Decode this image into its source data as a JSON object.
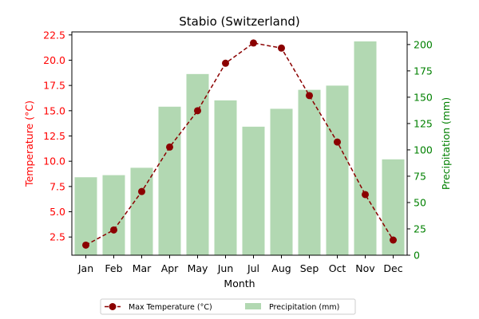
{
  "chart_data": {
    "type": "bar",
    "title": "Stabio (Switzerland)",
    "xlabel": "Month",
    "ylabel_left": "Temperature (°C)",
    "ylabel_right": "Precipitation (mm)",
    "categories": [
      "Jan",
      "Feb",
      "Mar",
      "Apr",
      "May",
      "Jun",
      "Jul",
      "Aug",
      "Sep",
      "Oct",
      "Nov",
      "Dec"
    ],
    "y_left_ticks": [
      "2.5",
      "5.0",
      "7.5",
      "10.0",
      "12.5",
      "15.0",
      "17.5",
      "20.0",
      "22.5"
    ],
    "y_right_ticks": [
      "0",
      "25",
      "50",
      "75",
      "100",
      "125",
      "150",
      "175",
      "200"
    ],
    "ylim_left": [
      0.7,
      22.8
    ],
    "ylim_right": [
      0,
      212
    ],
    "series": [
      {
        "name": "Max Temperature (°C)",
        "type": "line",
        "axis": "left",
        "values": [
          1.7,
          3.2,
          7.0,
          11.4,
          15.0,
          19.7,
          21.7,
          21.2,
          16.5,
          11.9,
          6.7,
          2.2
        ],
        "color": "#8b0000"
      },
      {
        "name": "Precipitation (mm)",
        "type": "bar",
        "axis": "right",
        "values": [
          74,
          76,
          83,
          141,
          172,
          147,
          122,
          139,
          157,
          161,
          203,
          91
        ],
        "color": "#b2d8b2"
      }
    ],
    "legend_position": "bottom-center",
    "grid": false,
    "colors": {
      "left_axis": "#ff0000",
      "right_axis": "#008000"
    }
  }
}
